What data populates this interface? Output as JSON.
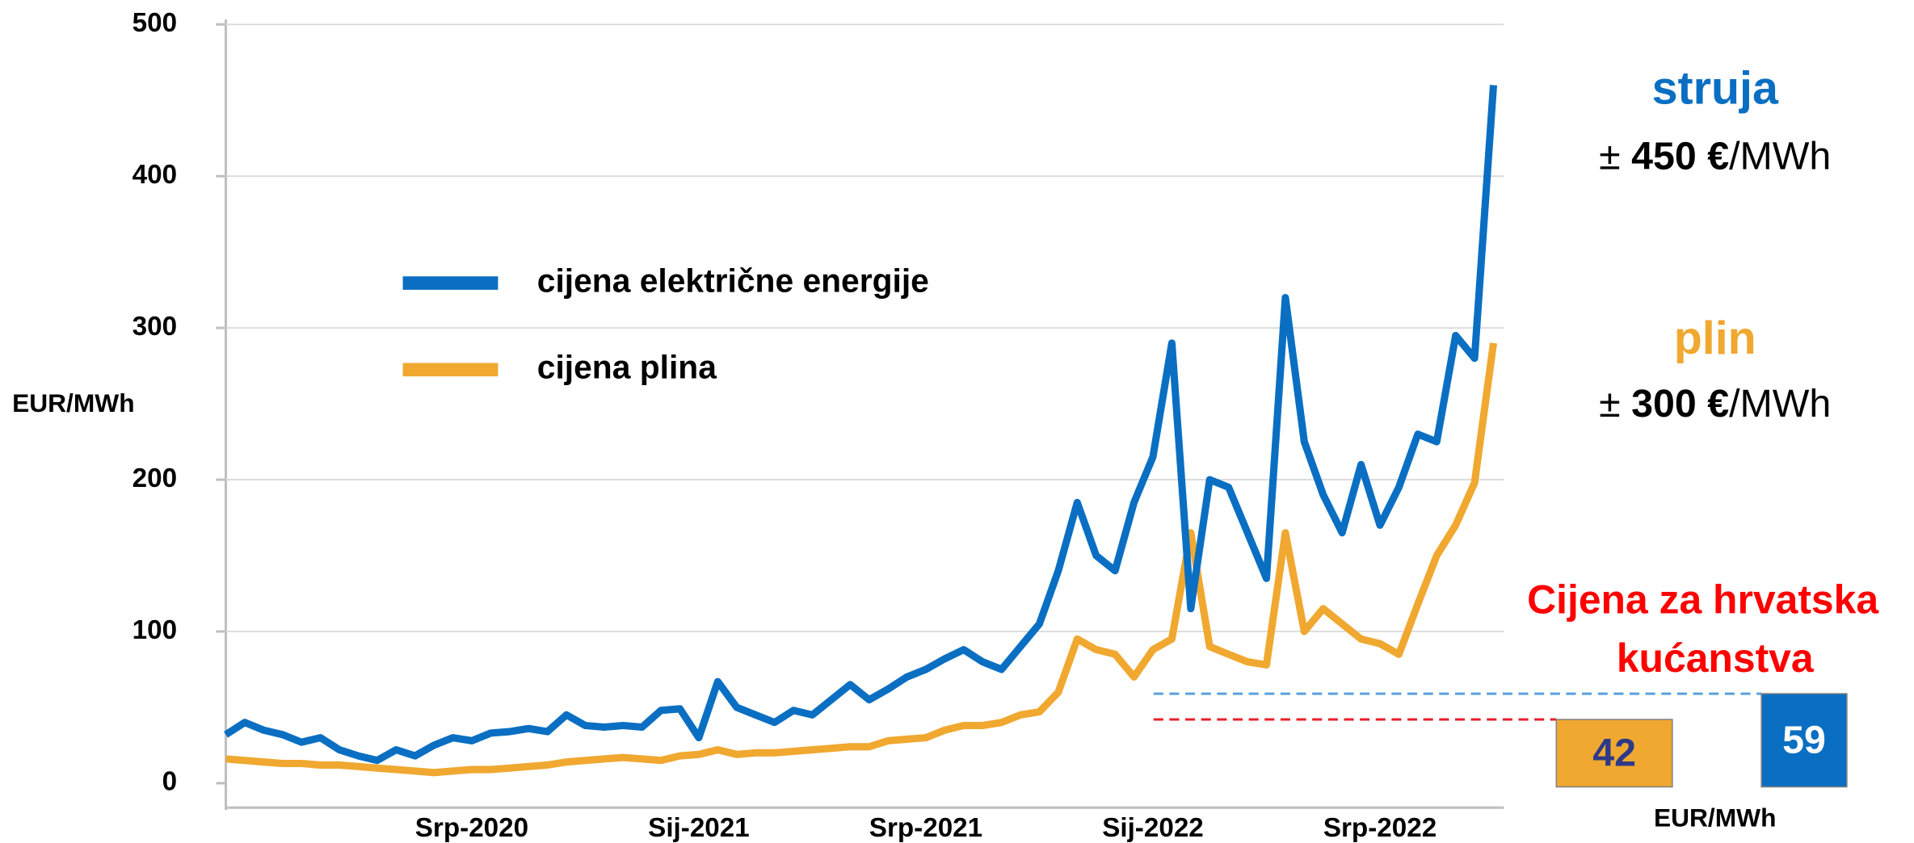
{
  "chart_data": {
    "type": "line",
    "y_label": "EUR/MWh",
    "categories": [
      null,
      null,
      null,
      null,
      null,
      null,
      null,
      null,
      null,
      null,
      null,
      null,
      null,
      "Srp-2020",
      null,
      null,
      null,
      null,
      null,
      null,
      null,
      null,
      null,
      null,
      null,
      "Sij-2021",
      null,
      null,
      null,
      null,
      null,
      null,
      null,
      null,
      null,
      null,
      null,
      "Srp-2021",
      null,
      null,
      null,
      null,
      null,
      null,
      null,
      null,
      null,
      null,
      null,
      "Sij-2022",
      null,
      null,
      null,
      null,
      null,
      null,
      null,
      null,
      null,
      null,
      null,
      "Srp-2022",
      null,
      null,
      null,
      null,
      null,
      null
    ],
    "series": [
      {
        "name": "cijena električne energije",
        "color": "#0a6fc2",
        "values": [
          32,
          40,
          35,
          32,
          27,
          30,
          22,
          18,
          15,
          22,
          18,
          25,
          30,
          28,
          33,
          34,
          36,
          34,
          45,
          38,
          37,
          38,
          37,
          48,
          49,
          30,
          67,
          50,
          45,
          40,
          48,
          45,
          55,
          65,
          55,
          62,
          70,
          75,
          82,
          88,
          80,
          75,
          90,
          105,
          140,
          185,
          150,
          140,
          185,
          215,
          290,
          115,
          200,
          195,
          165,
          135,
          320,
          225,
          190,
          165,
          210,
          170,
          195,
          230,
          225,
          295,
          280,
          460
        ]
      },
      {
        "name": "cijena plina",
        "color": "#f0a830",
        "values": [
          16,
          15,
          14,
          13,
          13,
          12,
          12,
          11,
          10,
          9,
          8,
          7,
          8,
          9,
          9,
          10,
          11,
          12,
          14,
          15,
          16,
          17,
          16,
          15,
          18,
          19,
          22,
          19,
          20,
          20,
          21,
          22,
          23,
          24,
          24,
          28,
          29,
          30,
          35,
          38,
          38,
          40,
          45,
          47,
          60,
          95,
          88,
          85,
          70,
          88,
          95,
          165,
          90,
          85,
          80,
          78,
          165,
          100,
          115,
          105,
          95,
          92,
          85,
          118,
          150,
          170,
          198,
          290
        ]
      }
    ],
    "ylim": [
      0,
      500
    ],
    "yticks": [
      0,
      100,
      200,
      300,
      400,
      500
    ],
    "grid": true,
    "legend": "left",
    "annotations": {
      "electricity": {
        "label": "struja",
        "approx": "±",
        "value": "450 €",
        "unit": "/MWh",
        "color": "#0a6fc2"
      },
      "gas": {
        "label": "plin",
        "approx": "±",
        "value": "300 €",
        "unit": "/MWh",
        "color": "#f0a830"
      }
    },
    "households": {
      "title": [
        "Cijena za hrvatska",
        "kućanstva"
      ],
      "color": "#ff0000",
      "gas": {
        "value": 42,
        "color": "#f0a830",
        "text_color": "#2e3a87",
        "line_color": "#e8202a"
      },
      "electricity": {
        "value": 59,
        "color": "#0a6fc2",
        "text_color": "#ffffff",
        "line_color": "#5aa0dc"
      },
      "unit": "EUR/MWh"
    }
  }
}
